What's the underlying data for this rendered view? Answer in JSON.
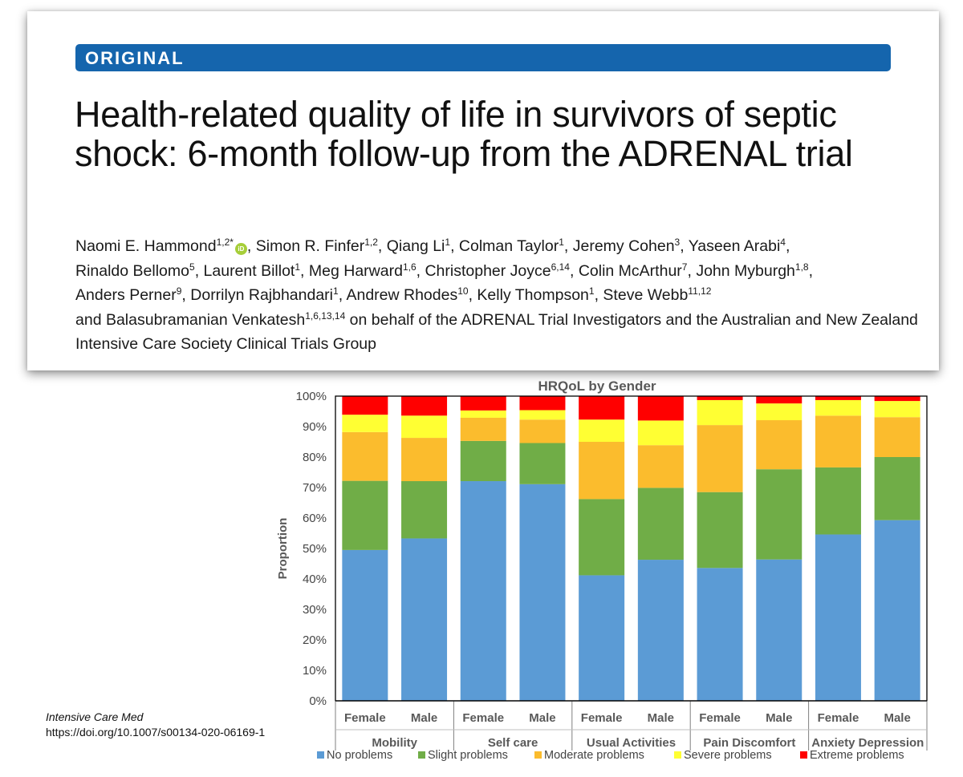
{
  "header": {
    "banner": "ORIGINAL",
    "title": "Health-related quality of life in survivors of septic shock: 6-month follow-up from the ADRENAL trial",
    "authors": [
      {
        "name": "Naomi E. Hammond",
        "sup": "1,2*",
        "orcid": true
      },
      {
        "name": "Simon R. Finfer",
        "sup": "1,2"
      },
      {
        "name": "Qiang Li",
        "sup": "1"
      },
      {
        "name": "Colman Taylor",
        "sup": "1"
      },
      {
        "name": "Jeremy Cohen",
        "sup": "3"
      },
      {
        "name": "Yaseen Arabi",
        "sup": "4"
      },
      {
        "name": "Rinaldo Bellomo",
        "sup": "5"
      },
      {
        "name": "Laurent Billot",
        "sup": "1"
      },
      {
        "name": "Meg Harward",
        "sup": "1,6"
      },
      {
        "name": "Christopher Joyce",
        "sup": "6,14"
      },
      {
        "name": "Colin McArthur",
        "sup": "7"
      },
      {
        "name": "John Myburgh",
        "sup": "1,8"
      },
      {
        "name": "Anders Perner",
        "sup": "9"
      },
      {
        "name": "Dorrilyn Rajbhandari",
        "sup": "1"
      },
      {
        "name": "Andrew Rhodes",
        "sup": "10"
      },
      {
        "name": "Kelly Thompson",
        "sup": "1"
      },
      {
        "name": "Steve Webb",
        "sup": "11,12"
      },
      {
        "name": "Balasubramanian Venkatesh",
        "sup": "1,6,13,14",
        "prefix": "and "
      }
    ],
    "authors_suffix": " on behalf of the ADRENAL Trial Investigators and the Australian and New Zealand Intensive Care Society Clinical Trials Group"
  },
  "citation": {
    "journal": "Intensive Care Med",
    "doi": "https://doi.org/10.1007/s00134-020-06169-1"
  },
  "colors": {
    "banner": "#1565ad",
    "no_problems": "#5b9bd5",
    "slight_problems": "#70ad47",
    "moderate_problems": "#fbbc2d",
    "severe_problems": "#ffff33",
    "extreme_problems": "#ff0000"
  },
  "chart_data": {
    "type": "bar",
    "stacked": true,
    "title": "HRQoL by Gender",
    "ylabel": "Proportion",
    "xlabel": "",
    "ylim": [
      0,
      100
    ],
    "yticks": [
      "0%",
      "10%",
      "20%",
      "30%",
      "40%",
      "50%",
      "60%",
      "70%",
      "80%",
      "90%",
      "100%"
    ],
    "legend_position": "bottom",
    "groups": [
      "Mobility",
      "Self care",
      "Usual Activities",
      "Pain Discomfort",
      "Anxiety Depression"
    ],
    "categories": [
      "Female",
      "Male",
      "Female",
      "Male",
      "Female",
      "Male",
      "Female",
      "Male",
      "Female",
      "Male"
    ],
    "series": [
      {
        "name": "No problems",
        "color": "#5b9bd5",
        "values": [
          49.5,
          53.3,
          72.1,
          71.1,
          41.2,
          46.3,
          43.6,
          46.4,
          54.6,
          59.3
        ]
      },
      {
        "name": "Slight problems",
        "color": "#70ad47",
        "values": [
          22.7,
          18.8,
          13.2,
          13.5,
          25.0,
          23.6,
          24.9,
          29.6,
          22.0,
          20.7
        ]
      },
      {
        "name": "Moderate problems",
        "color": "#fbbc2d",
        "values": [
          16.0,
          14.2,
          7.6,
          7.7,
          18.8,
          14.0,
          22.0,
          16.1,
          17.0,
          13.1
        ]
      },
      {
        "name": "Severe problems",
        "color": "#ffff33",
        "values": [
          5.7,
          7.3,
          2.4,
          3.1,
          7.3,
          8.1,
          8.2,
          5.5,
          5.1,
          5.3
        ]
      },
      {
        "name": "Extreme problems",
        "color": "#ff0000",
        "values": [
          6.1,
          6.4,
          4.7,
          4.6,
          7.7,
          8.0,
          1.3,
          2.4,
          1.3,
          1.6
        ]
      }
    ]
  }
}
